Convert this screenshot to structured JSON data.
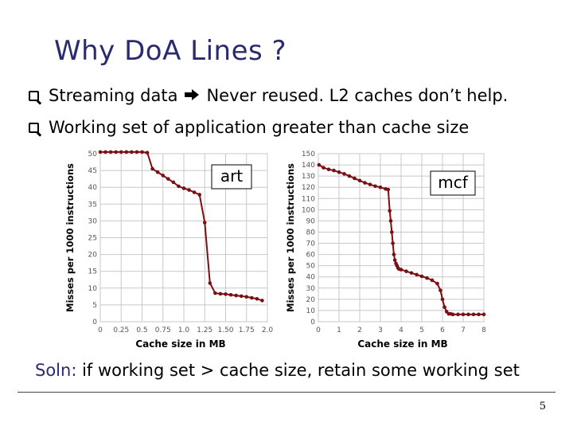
{
  "slide": {
    "title": "Why DoA Lines ?",
    "bullet1": {
      "pre": "Streaming data",
      "post": "Never reused. L2 caches don’t help."
    },
    "bullet2": "Working set of application greater than cache size",
    "soln_label": "Soln:",
    "soln_text": " if working set > cache size, retain some working set",
    "page_number": "5"
  },
  "chart_data": [
    {
      "type": "line",
      "annotation": "art",
      "xlabel": "Cache size in MB",
      "ylabel": "Misses per 1000 instructions",
      "xlim": [
        0,
        2.0
      ],
      "ylim": [
        0,
        50
      ],
      "xticks": [
        "0",
        "0.25",
        "0.5",
        "0.75",
        "1.0",
        "1.25",
        "1.50",
        "1.75",
        "2.0"
      ],
      "yticks": [
        "0",
        "5",
        "10",
        "15",
        "20",
        "25",
        "30",
        "35",
        "40",
        "45",
        "50"
      ],
      "grid": true,
      "color": "#7a0f14",
      "x": [
        0,
        0.0625,
        0.125,
        0.1875,
        0.25,
        0.3125,
        0.375,
        0.4375,
        0.5,
        0.5625,
        0.625,
        0.6875,
        0.75,
        0.8125,
        0.875,
        0.9375,
        1.0,
        1.0625,
        1.125,
        1.1875,
        1.25,
        1.3125,
        1.375,
        1.4375,
        1.5,
        1.5625,
        1.625,
        1.6875,
        1.75,
        1.8125,
        1.875,
        1.9375
      ],
      "y": [
        50.5,
        50.5,
        50.5,
        50.5,
        50.5,
        50.5,
        50.5,
        50.5,
        50.5,
        50.3,
        45.5,
        44.5,
        43.5,
        42.5,
        41.5,
        40.3,
        39.7,
        39.2,
        38.5,
        37.8,
        29.5,
        11.5,
        8.5,
        8.3,
        8.2,
        8.0,
        7.8,
        7.6,
        7.4,
        7.1,
        6.8,
        6.3
      ]
    },
    {
      "type": "line",
      "annotation": "mcf",
      "xlabel": "Cache size in MB",
      "ylabel": "Misses per 1000 instructions",
      "xlim": [
        0,
        8
      ],
      "ylim": [
        0,
        150
      ],
      "xticks": [
        "0",
        "1",
        "2",
        "3",
        "4",
        "5",
        "6",
        "7",
        "8"
      ],
      "yticks": [
        "0",
        "10",
        "20",
        "30",
        "40",
        "50",
        "60",
        "70",
        "80",
        "90",
        "100",
        "110",
        "120",
        "130",
        "140",
        "150"
      ],
      "grid": true,
      "color": "#7a0f14",
      "x": [
        0.03,
        0.25,
        0.5,
        0.75,
        1.0,
        1.25,
        1.5,
        1.75,
        2.0,
        2.25,
        2.5,
        2.75,
        3.0,
        3.25,
        3.375,
        3.45,
        3.5,
        3.55,
        3.6,
        3.65,
        3.7,
        3.75,
        3.8,
        3.85,
        3.9,
        4.0,
        4.25,
        4.5,
        4.75,
        5.0,
        5.25,
        5.5,
        5.75,
        5.9,
        6.0,
        6.1,
        6.2,
        6.3,
        6.4,
        6.5,
        6.75,
        7.0,
        7.25,
        7.5,
        7.75,
        8.0
      ],
      "y": [
        140,
        137.5,
        136,
        135,
        133.5,
        132,
        130,
        128,
        126,
        124,
        122.5,
        121,
        120,
        118.5,
        118,
        99,
        90,
        80,
        70,
        60,
        55,
        52,
        50,
        48,
        47,
        46.5,
        45,
        43.5,
        42,
        40.5,
        39,
        37,
        34,
        28,
        20,
        13,
        9,
        7,
        7,
        6.5,
        6.5,
        6.5,
        6.5,
        6.5,
        6.5,
        6.5
      ]
    }
  ]
}
